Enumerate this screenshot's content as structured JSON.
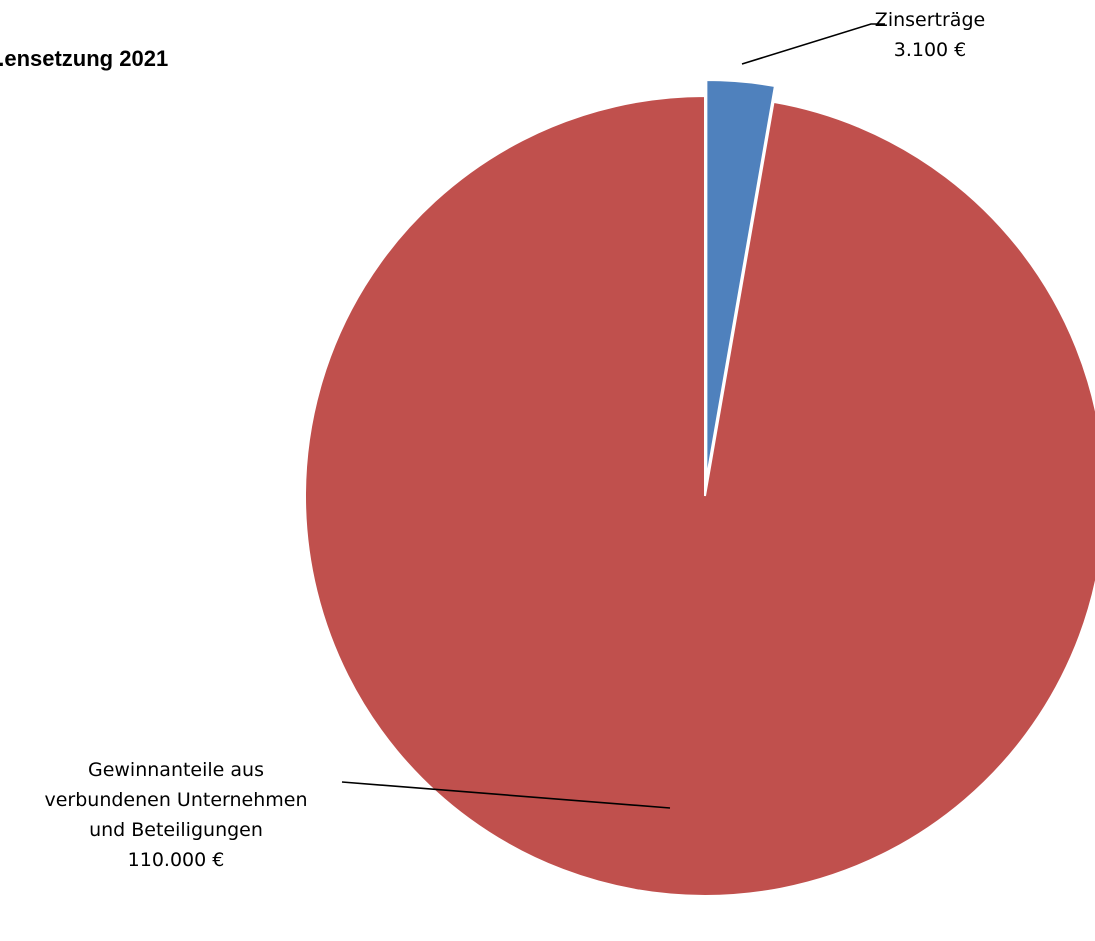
{
  "chart_data": {
    "type": "pie",
    "title": "...ensetzung 2021",
    "start_angle_deg": 0,
    "direction": "clockwise",
    "slices": [
      {
        "name": "Zinserträge",
        "value": 3100,
        "value_label": "3.100 €",
        "label_lines": [
          "Zinserträge",
          "3.100 €"
        ],
        "exploded": true,
        "color": "#4F81BD"
      },
      {
        "name": "Gewinnanteile aus verbundenen Unternehmen und Beteiligungen",
        "value": 110000,
        "value_label": "110.000 €",
        "label_lines": [
          "Gewinnanteile aus",
          "verbundenen Unternehmen",
          "und Beteiligungen",
          "110.000 €"
        ],
        "exploded": false,
        "color": "#C0504D"
      }
    ],
    "legend": "none"
  }
}
